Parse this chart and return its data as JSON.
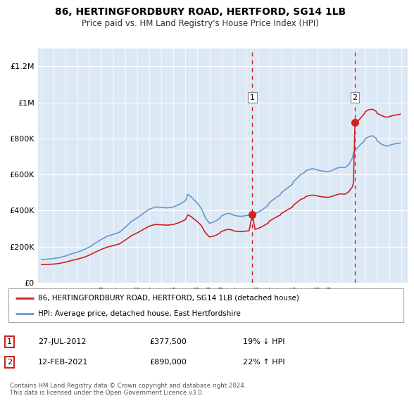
{
  "title": "86, HERTINGFORDBURY ROAD, HERTFORD, SG14 1LB",
  "subtitle": "Price paid vs. HM Land Registry's House Price Index (HPI)",
  "legend_line1": "86, HERTINGFORDBURY ROAD, HERTFORD, SG14 1LB (detached house)",
  "legend_line2": "HPI: Average price, detached house, East Hertfordshire",
  "annotation1_date": "27-JUL-2012",
  "annotation1_price": "£377,500",
  "annotation1_hpi": "19% ↓ HPI",
  "annotation1_year": 2012.57,
  "annotation1_value": 377500,
  "annotation2_date": "12-FEB-2021",
  "annotation2_price": "£890,000",
  "annotation2_hpi": "22% ↑ HPI",
  "annotation2_year": 2021.12,
  "annotation2_value": 890000,
  "footer": "Contains HM Land Registry data © Crown copyright and database right 2024.\nThis data is licensed under the Open Government Licence v3.0.",
  "hpi_color": "#6699cc",
  "price_color": "#cc2222",
  "background_color": "#dce9f5",
  "ylim_max": 1300000,
  "xlim_start": 1994.7,
  "xlim_end": 2025.5
}
